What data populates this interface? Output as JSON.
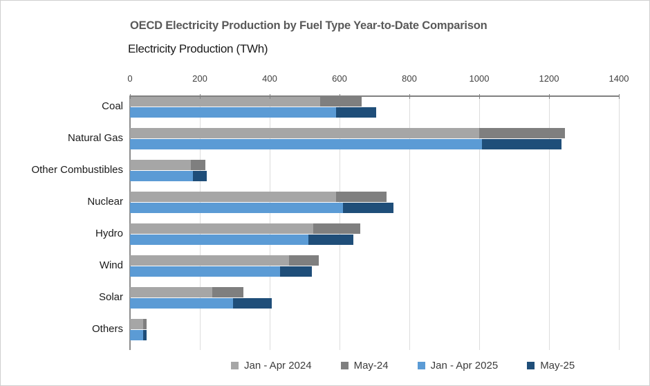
{
  "title": "OECD Electricity Production by Fuel Type Year-to-Date Comparison",
  "subtitle": "Electricity Production (TWh)",
  "axis": {
    "ticks": [
      0,
      200,
      400,
      600,
      800,
      1000,
      1200,
      1400
    ],
    "max": 1400
  },
  "colors": {
    "jan_apr_2024": "#A6A6A6",
    "may_24": "#7F7F7F",
    "jan_apr_2025": "#5B9BD5",
    "may_25": "#1F4E79"
  },
  "chart_data": {
    "type": "bar",
    "orientation": "horizontal",
    "stacked": true,
    "title": "OECD Electricity Production by Fuel Type Year-to-Date Comparison",
    "xlabel": "Electricity Production (TWh)",
    "xlim": [
      0,
      1400
    ],
    "grid": true,
    "legend_position": "bottom",
    "categories": [
      "Coal",
      "Natural Gas",
      "Other Combustibles",
      "Nuclear",
      "Hydro",
      "Wind",
      "Solar",
      "Others"
    ],
    "series": [
      {
        "name": "Jan - Apr 2024",
        "color": "#A6A6A6",
        "stack": "2024",
        "values": [
          545,
          1000,
          175,
          590,
          525,
          455,
          235,
          38
        ]
      },
      {
        "name": "May-24",
        "color": "#7F7F7F",
        "stack": "2024",
        "values": [
          118,
          245,
          40,
          145,
          135,
          85,
          90,
          10
        ]
      },
      {
        "name": "Jan - Apr 2025",
        "color": "#5B9BD5",
        "stack": "2025",
        "values": [
          590,
          1008,
          180,
          610,
          510,
          430,
          295,
          37
        ]
      },
      {
        "name": "May-25",
        "color": "#1F4E79",
        "stack": "2025",
        "values": [
          115,
          228,
          40,
          145,
          130,
          90,
          110,
          10
        ]
      }
    ]
  }
}
